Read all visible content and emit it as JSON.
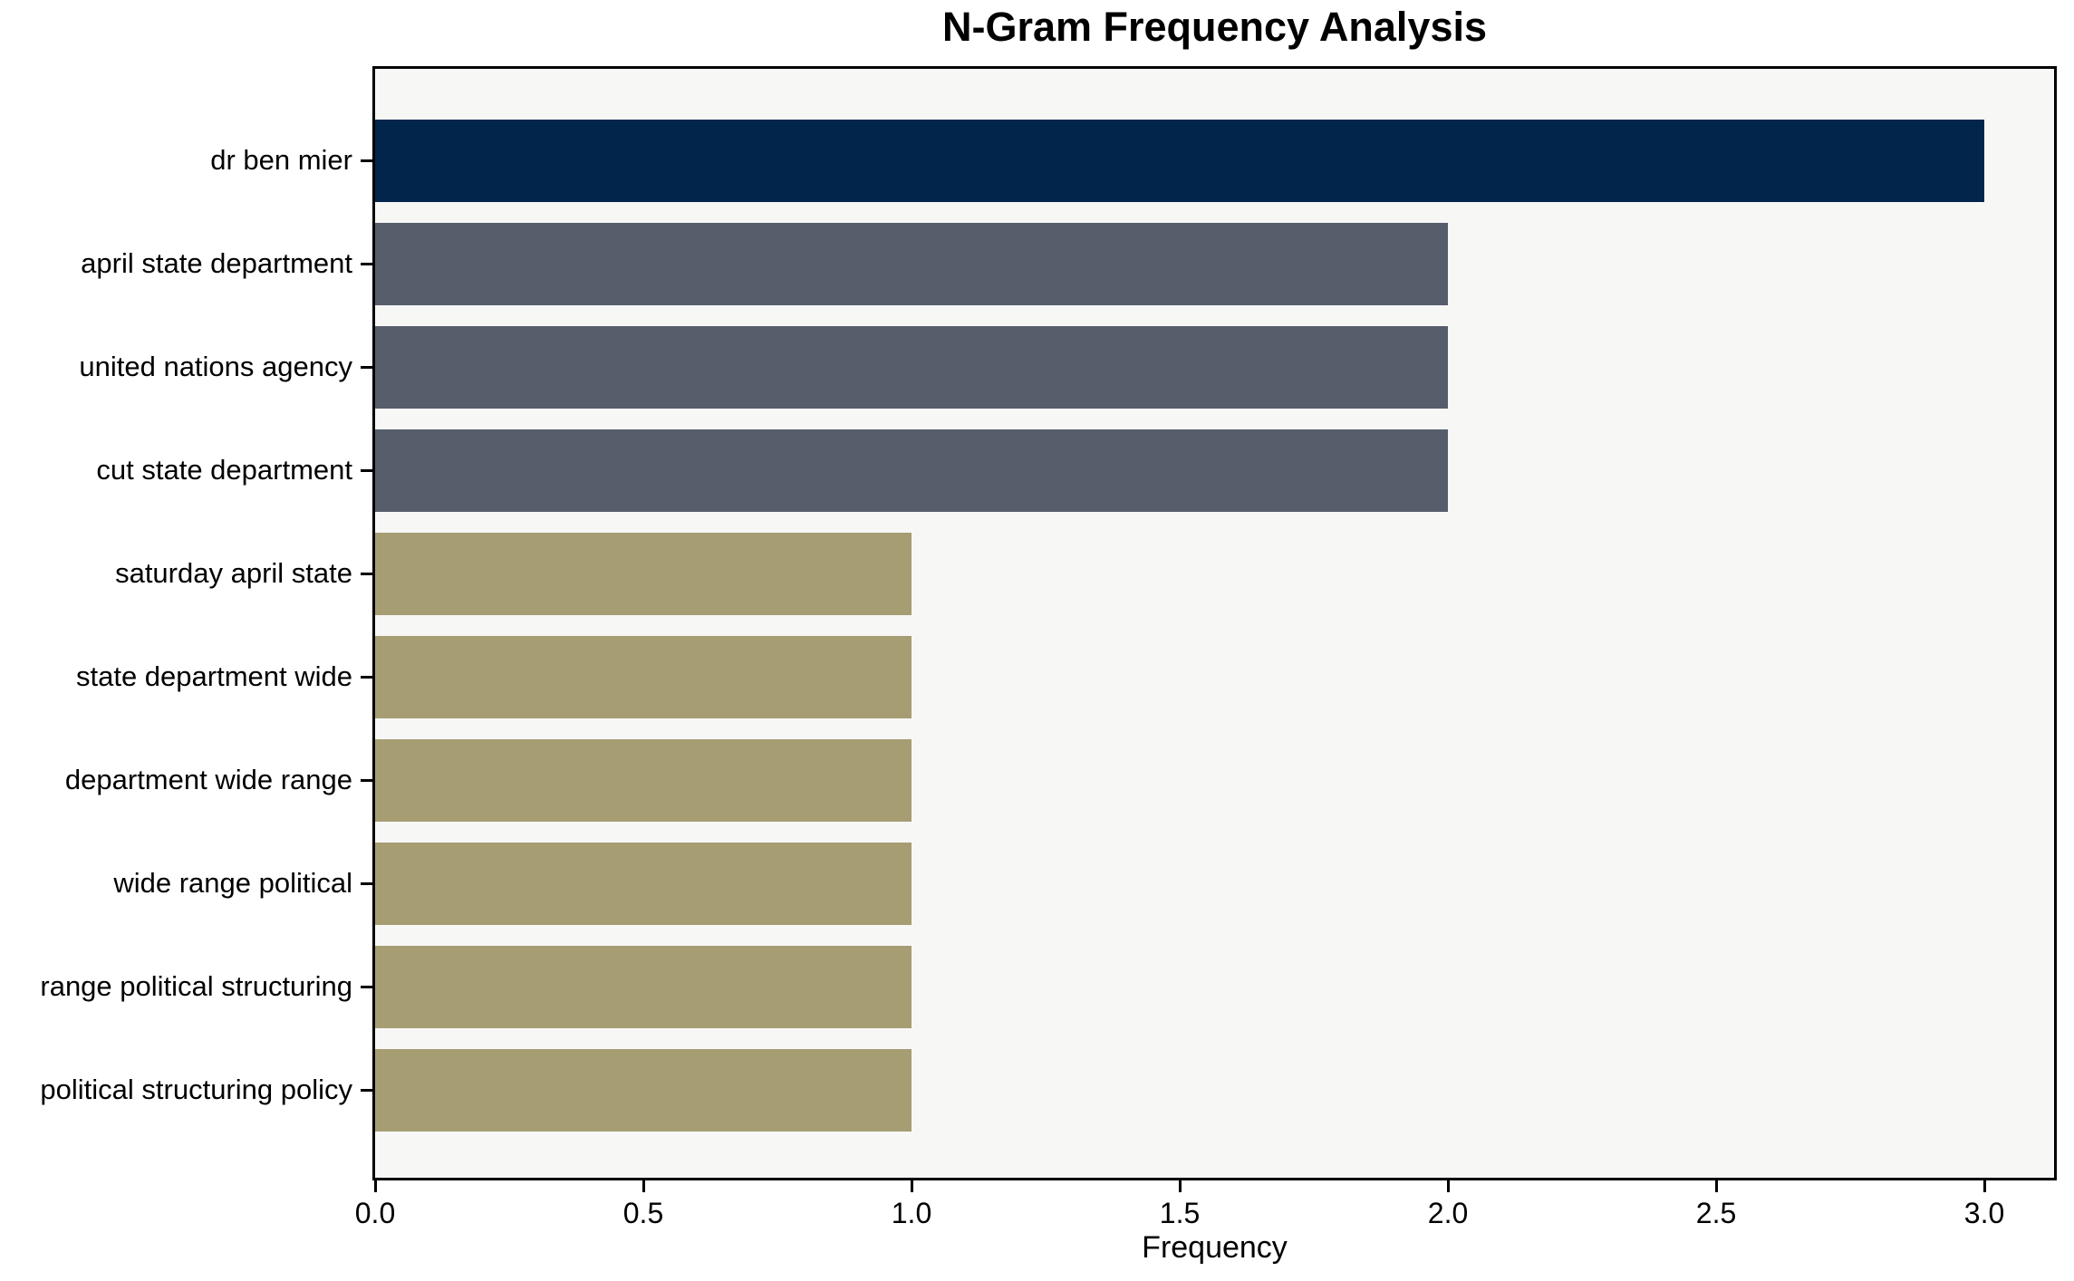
{
  "chart_data": {
    "type": "bar",
    "orientation": "horizontal",
    "title": "N-Gram Frequency Analysis",
    "xlabel": "Frequency",
    "ylabel": "",
    "categories": [
      "dr ben mier",
      "april state department",
      "united nations agency",
      "cut state department",
      "saturday april state",
      "state department wide",
      "department wide range",
      "wide range political",
      "range political structuring",
      "political structuring policy"
    ],
    "values": [
      3,
      2,
      2,
      2,
      1,
      1,
      1,
      1,
      1,
      1
    ],
    "bar_colors": [
      "#02254c",
      "#565d6b",
      "#565d6b",
      "#565d6b",
      "#a79d73",
      "#a79d73",
      "#a79d73",
      "#a79d73",
      "#a79d73",
      "#a79d73"
    ],
    "xticks": [
      "0.0",
      "0.5",
      "1.0",
      "1.5",
      "2.0",
      "2.5",
      "3.0"
    ],
    "xtick_values": [
      0,
      0.5,
      1,
      1.5,
      2,
      2.5,
      3
    ],
    "xlim": [
      0,
      3.13
    ],
    "grid": false,
    "legend_position": "none",
    "plot_background": "#f7f7f6",
    "figure_background": "#ffffff",
    "axis_color": "#000000"
  }
}
